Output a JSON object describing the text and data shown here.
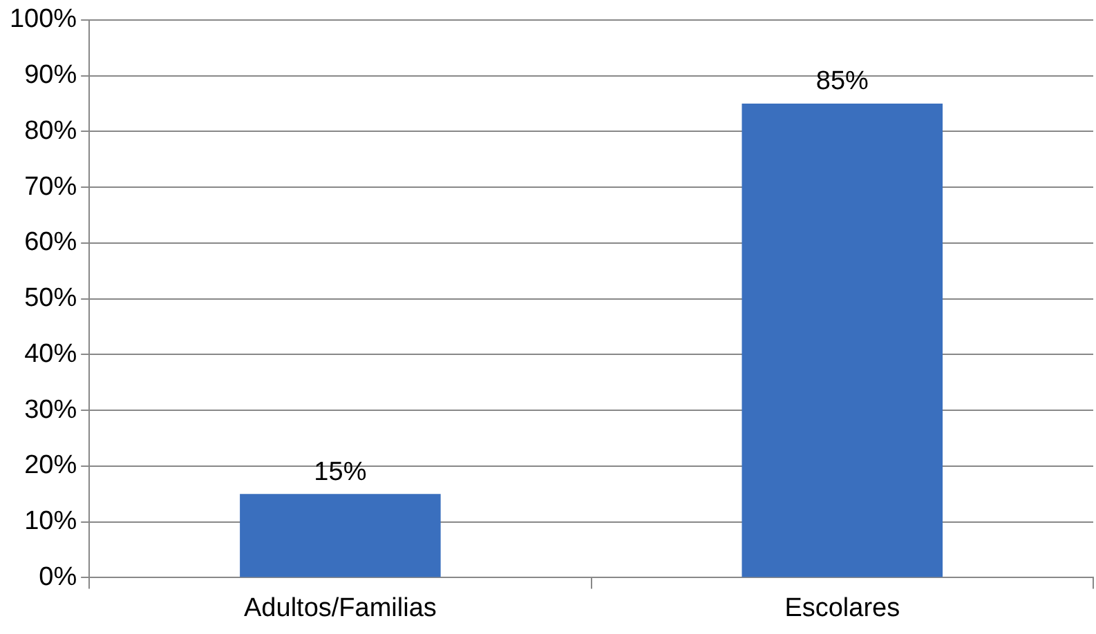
{
  "chart_data": {
    "type": "bar",
    "categories": [
      "Adultos/Familias",
      "Escolares"
    ],
    "values": [
      15,
      85
    ],
    "color": "#3a6fbe",
    "value_labels": [
      "15%",
      "85%"
    ],
    "ylim": [
      0,
      100
    ],
    "yticks": [
      {
        "value": 0,
        "label": "0%"
      },
      {
        "value": 10,
        "label": "10%"
      },
      {
        "value": 20,
        "label": "20%"
      },
      {
        "value": 30,
        "label": "30%"
      },
      {
        "value": 40,
        "label": "40%"
      },
      {
        "value": 50,
        "label": "50%"
      },
      {
        "value": 60,
        "label": "60%"
      },
      {
        "value": 70,
        "label": "70%"
      },
      {
        "value": 80,
        "label": "80%"
      },
      {
        "value": 90,
        "label": "90%"
      },
      {
        "value": 100,
        "label": "100%"
      }
    ],
    "grid": "y",
    "legend": false
  }
}
